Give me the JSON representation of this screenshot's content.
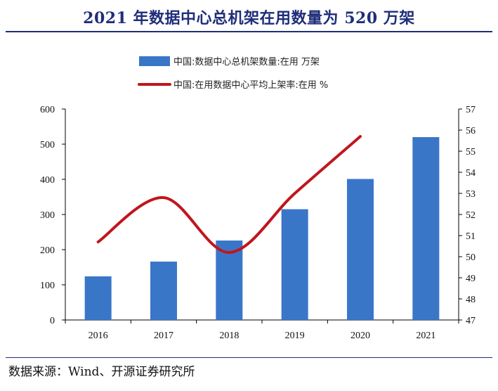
{
  "title": "2021 年数据中心总机架在用数量为 520 万架",
  "source": "数据来源：Wind、开源证券研究所",
  "chart_data": {
    "type": "bar+line",
    "categories": [
      "2016",
      "2017",
      "2018",
      "2019",
      "2020",
      "2021"
    ],
    "series": [
      {
        "name": "中国:数据中心总机架数量:在用 万架",
        "type": "bar",
        "axis": "left",
        "color": "#3a76c8",
        "values": [
          124,
          166,
          226,
          315,
          401,
          520
        ]
      },
      {
        "name": "中国:在用数据中心平均上架率:在用 %",
        "type": "line",
        "axis": "right",
        "color": "#c0161d",
        "values": [
          50.7,
          52.8,
          50.2,
          53.0,
          55.7,
          null
        ]
      }
    ],
    "y_left": {
      "min": 0,
      "max": 600,
      "ticks": [
        "0",
        "100",
        "200",
        "300",
        "400",
        "500",
        "600"
      ]
    },
    "y_right": {
      "min": 47,
      "max": 57,
      "ticks": [
        "47",
        "48",
        "49",
        "50",
        "51",
        "52",
        "53",
        "54",
        "55",
        "56",
        "57"
      ]
    },
    "legend_position": "top",
    "grid": false
  }
}
